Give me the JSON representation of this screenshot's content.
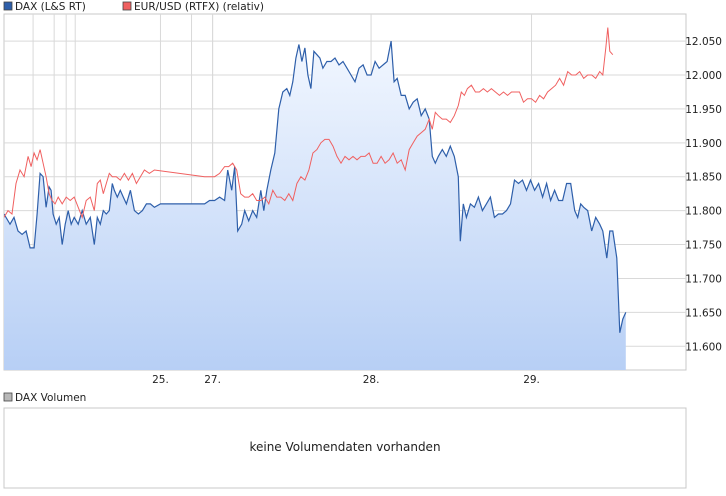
{
  "legend_top": [
    {
      "label": "DAX (L&S RT)",
      "color": "#2e5faa"
    },
    {
      "label": "EUR/USD (RTFX) (relativ)",
      "color": "#f06060"
    }
  ],
  "volume_panel": {
    "legend_label": "DAX Volumen",
    "legend_color": "#b8b8b8",
    "message": "keine Volumendaten vorhanden"
  },
  "colors": {
    "dax_line": "#2e5faa",
    "dax_fill_top": "#f2f7ff",
    "dax_fill_bottom": "#b7cff5",
    "eurusd_line": "#f06060",
    "grid": "#d9d9d9",
    "frame": "#c8c8c8"
  },
  "chart_data": {
    "type": "line",
    "title": "",
    "xlabel": "",
    "ylabel": "",
    "ylim": [
      11565,
      12090
    ],
    "y_ticks": [
      11600,
      11650,
      11700,
      11750,
      11800,
      11850,
      11900,
      11950,
      12000,
      12050
    ],
    "y_tick_labels": [
      "11.600",
      "11.650",
      "11.700",
      "11.750",
      "11.800",
      "11.850",
      "11.900",
      "11.950",
      "12.000",
      "12.050"
    ],
    "x_range": [
      0,
      680
    ],
    "x_ticks": [
      {
        "x": 156,
        "label": "25."
      },
      {
        "x": 208,
        "label": "27."
      },
      {
        "x": 366,
        "label": "28."
      },
      {
        "x": 526,
        "label": "29."
      }
    ],
    "x_minor_grid": [
      29,
      50,
      62,
      71,
      187,
      208
    ],
    "grid": true,
    "legend": "top-left",
    "series": [
      {
        "name": "DAX (L&S RT)",
        "style": "area",
        "points": [
          [
            0,
            11795
          ],
          [
            6,
            11780
          ],
          [
            10,
            11790
          ],
          [
            14,
            11770
          ],
          [
            18,
            11765
          ],
          [
            22,
            11770
          ],
          [
            26,
            11745
          ],
          [
            30,
            11745
          ],
          [
            33,
            11795
          ],
          [
            36,
            11855
          ],
          [
            39,
            11850
          ],
          [
            42,
            11805
          ],
          [
            45,
            11835
          ],
          [
            47,
            11830
          ],
          [
            49,
            11795
          ],
          [
            52,
            11780
          ],
          [
            55,
            11790
          ],
          [
            58,
            11750
          ],
          [
            61,
            11780
          ],
          [
            64,
            11800
          ],
          [
            67,
            11780
          ],
          [
            70,
            11790
          ],
          [
            74,
            11780
          ],
          [
            78,
            11800
          ],
          [
            82,
            11780
          ],
          [
            86,
            11790
          ],
          [
            90,
            11750
          ],
          [
            93,
            11790
          ],
          [
            96,
            11780
          ],
          [
            99,
            11800
          ],
          [
            102,
            11795
          ],
          [
            105,
            11800
          ],
          [
            108,
            11840
          ],
          [
            110,
            11830
          ],
          [
            113,
            11820
          ],
          [
            116,
            11830
          ],
          [
            119,
            11820
          ],
          [
            122,
            11810
          ],
          [
            126,
            11830
          ],
          [
            130,
            11800
          ],
          [
            134,
            11795
          ],
          [
            138,
            11800
          ],
          [
            142,
            11810
          ],
          [
            146,
            11810
          ],
          [
            150,
            11805
          ],
          [
            156,
            11810
          ],
          [
            200,
            11810
          ],
          [
            205,
            11815
          ],
          [
            210,
            11815
          ],
          [
            215,
            11820
          ],
          [
            220,
            11815
          ],
          [
            223,
            11860
          ],
          [
            227,
            11830
          ],
          [
            230,
            11865
          ],
          [
            233,
            11770
          ],
          [
            237,
            11780
          ],
          [
            240,
            11800
          ],
          [
            244,
            11785
          ],
          [
            248,
            11800
          ],
          [
            252,
            11790
          ],
          [
            256,
            11830
          ],
          [
            259,
            11800
          ],
          [
            262,
            11830
          ],
          [
            266,
            11860
          ],
          [
            270,
            11885
          ],
          [
            274,
            11950
          ],
          [
            278,
            11975
          ],
          [
            282,
            11980
          ],
          [
            285,
            11970
          ],
          [
            288,
            11990
          ],
          [
            291,
            12025
          ],
          [
            294,
            12045
          ],
          [
            297,
            12020
          ],
          [
            300,
            12040
          ],
          [
            303,
            12000
          ],
          [
            306,
            11980
          ],
          [
            309,
            12035
          ],
          [
            312,
            12030
          ],
          [
            315,
            12025
          ],
          [
            318,
            12010
          ],
          [
            322,
            12020
          ],
          [
            326,
            12020
          ],
          [
            330,
            12025
          ],
          [
            334,
            12015
          ],
          [
            338,
            12020
          ],
          [
            342,
            12010
          ],
          [
            346,
            12000
          ],
          [
            350,
            11990
          ],
          [
            354,
            12010
          ],
          [
            358,
            12015
          ],
          [
            362,
            12000
          ],
          [
            366,
            12000
          ],
          [
            370,
            12020
          ],
          [
            374,
            12010
          ],
          [
            378,
            12015
          ],
          [
            382,
            12020
          ],
          [
            386,
            12050
          ],
          [
            389,
            11990
          ],
          [
            392,
            11995
          ],
          [
            396,
            11970
          ],
          [
            400,
            11970
          ],
          [
            404,
            11950
          ],
          [
            408,
            11960
          ],
          [
            412,
            11965
          ],
          [
            416,
            11940
          ],
          [
            420,
            11950
          ],
          [
            424,
            11935
          ],
          [
            427,
            11880
          ],
          [
            430,
            11870
          ],
          [
            433,
            11880
          ],
          [
            437,
            11890
          ],
          [
            441,
            11880
          ],
          [
            445,
            11895
          ],
          [
            449,
            11880
          ],
          [
            453,
            11850
          ],
          [
            455,
            11755
          ],
          [
            458,
            11810
          ],
          [
            461,
            11790
          ],
          [
            465,
            11810
          ],
          [
            469,
            11805
          ],
          [
            473,
            11820
          ],
          [
            477,
            11800
          ],
          [
            481,
            11810
          ],
          [
            485,
            11820
          ],
          [
            489,
            11790
          ],
          [
            493,
            11795
          ],
          [
            497,
            11795
          ],
          [
            501,
            11800
          ],
          [
            505,
            11810
          ],
          [
            509,
            11845
          ],
          [
            513,
            11840
          ],
          [
            517,
            11845
          ],
          [
            521,
            11830
          ],
          [
            525,
            11845
          ],
          [
            529,
            11830
          ],
          [
            533,
            11840
          ],
          [
            537,
            11820
          ],
          [
            541,
            11840
          ],
          [
            545,
            11815
          ],
          [
            549,
            11830
          ],
          [
            553,
            11815
          ],
          [
            557,
            11815
          ],
          [
            561,
            11840
          ],
          [
            565,
            11840
          ],
          [
            569,
            11800
          ],
          [
            572,
            11790
          ],
          [
            575,
            11810
          ],
          [
            578,
            11805
          ],
          [
            582,
            11800
          ],
          [
            586,
            11770
          ],
          [
            590,
            11790
          ],
          [
            594,
            11780
          ],
          [
            597,
            11770
          ],
          [
            601,
            11730
          ],
          [
            604,
            11770
          ],
          [
            607,
            11770
          ],
          [
            611,
            11730
          ],
          [
            614,
            11620
          ],
          [
            617,
            11640
          ],
          [
            620,
            11650
          ]
        ]
      },
      {
        "name": "EUR/USD (RTFX) (relativ)",
        "style": "line",
        "points": [
          [
            0,
            11790
          ],
          [
            4,
            11800
          ],
          [
            8,
            11795
          ],
          [
            12,
            11840
          ],
          [
            16,
            11860
          ],
          [
            20,
            11850
          ],
          [
            24,
            11880
          ],
          [
            27,
            11865
          ],
          [
            30,
            11885
          ],
          [
            33,
            11875
          ],
          [
            36,
            11890
          ],
          [
            39,
            11870
          ],
          [
            42,
            11850
          ],
          [
            45,
            11825
          ],
          [
            48,
            11815
          ],
          [
            51,
            11810
          ],
          [
            54,
            11820
          ],
          [
            58,
            11810
          ],
          [
            62,
            11820
          ],
          [
            66,
            11815
          ],
          [
            70,
            11820
          ],
          [
            74,
            11805
          ],
          [
            78,
            11790
          ],
          [
            82,
            11815
          ],
          [
            86,
            11820
          ],
          [
            90,
            11800
          ],
          [
            93,
            11840
          ],
          [
            96,
            11845
          ],
          [
            99,
            11825
          ],
          [
            102,
            11840
          ],
          [
            105,
            11855
          ],
          [
            108,
            11850
          ],
          [
            112,
            11850
          ],
          [
            116,
            11845
          ],
          [
            120,
            11855
          ],
          [
            124,
            11845
          ],
          [
            128,
            11855
          ],
          [
            132,
            11840
          ],
          [
            136,
            11850
          ],
          [
            140,
            11860
          ],
          [
            145,
            11855
          ],
          [
            150,
            11860
          ],
          [
            200,
            11850
          ],
          [
            210,
            11850
          ],
          [
            215,
            11855
          ],
          [
            220,
            11865
          ],
          [
            224,
            11865
          ],
          [
            228,
            11870
          ],
          [
            232,
            11860
          ],
          [
            236,
            11825
          ],
          [
            240,
            11820
          ],
          [
            244,
            11820
          ],
          [
            248,
            11825
          ],
          [
            252,
            11815
          ],
          [
            256,
            11815
          ],
          [
            260,
            11820
          ],
          [
            264,
            11810
          ],
          [
            268,
            11830
          ],
          [
            272,
            11820
          ],
          [
            276,
            11820
          ],
          [
            280,
            11815
          ],
          [
            284,
            11825
          ],
          [
            288,
            11815
          ],
          [
            292,
            11840
          ],
          [
            296,
            11850
          ],
          [
            300,
            11845
          ],
          [
            304,
            11860
          ],
          [
            308,
            11885
          ],
          [
            312,
            11890
          ],
          [
            316,
            11900
          ],
          [
            320,
            11905
          ],
          [
            324,
            11905
          ],
          [
            328,
            11895
          ],
          [
            332,
            11880
          ],
          [
            336,
            11870
          ],
          [
            340,
            11880
          ],
          [
            344,
            11875
          ],
          [
            348,
            11880
          ],
          [
            352,
            11875
          ],
          [
            356,
            11880
          ],
          [
            360,
            11880
          ],
          [
            364,
            11885
          ],
          [
            368,
            11870
          ],
          [
            372,
            11870
          ],
          [
            376,
            11880
          ],
          [
            380,
            11870
          ],
          [
            384,
            11875
          ],
          [
            388,
            11885
          ],
          [
            392,
            11870
          ],
          [
            396,
            11875
          ],
          [
            400,
            11860
          ],
          [
            404,
            11890
          ],
          [
            408,
            11900
          ],
          [
            412,
            11910
          ],
          [
            416,
            11915
          ],
          [
            420,
            11920
          ],
          [
            424,
            11935
          ],
          [
            427,
            11920
          ],
          [
            430,
            11945
          ],
          [
            433,
            11940
          ],
          [
            437,
            11935
          ],
          [
            441,
            11935
          ],
          [
            445,
            11930
          ],
          [
            449,
            11940
          ],
          [
            453,
            11955
          ],
          [
            456,
            11975
          ],
          [
            459,
            11970
          ],
          [
            462,
            11980
          ],
          [
            466,
            11985
          ],
          [
            470,
            11975
          ],
          [
            474,
            11975
          ],
          [
            478,
            11980
          ],
          [
            482,
            11975
          ],
          [
            486,
            11980
          ],
          [
            490,
            11975
          ],
          [
            494,
            11970
          ],
          [
            498,
            11975
          ],
          [
            502,
            11970
          ],
          [
            506,
            11975
          ],
          [
            510,
            11975
          ],
          [
            514,
            11975
          ],
          [
            518,
            11960
          ],
          [
            522,
            11965
          ],
          [
            526,
            11965
          ],
          [
            530,
            11960
          ],
          [
            534,
            11970
          ],
          [
            538,
            11965
          ],
          [
            542,
            11975
          ],
          [
            546,
            11980
          ],
          [
            550,
            11985
          ],
          [
            554,
            11995
          ],
          [
            558,
            11985
          ],
          [
            562,
            12005
          ],
          [
            566,
            12000
          ],
          [
            570,
            12000
          ],
          [
            574,
            12005
          ],
          [
            578,
            11995
          ],
          [
            582,
            12000
          ],
          [
            586,
            12000
          ],
          [
            590,
            11995
          ],
          [
            594,
            12005
          ],
          [
            597,
            12000
          ],
          [
            600,
            12040
          ],
          [
            602,
            12070
          ],
          [
            604,
            12035
          ],
          [
            607,
            12030
          ]
        ]
      }
    ]
  }
}
